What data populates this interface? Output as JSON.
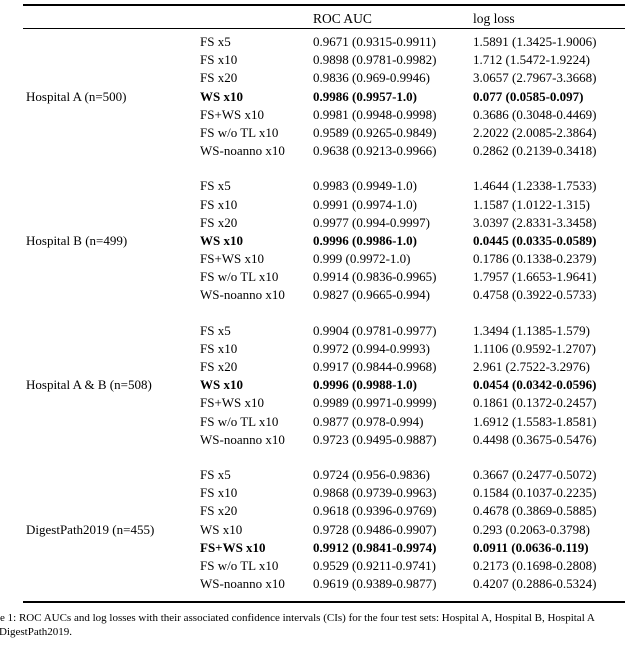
{
  "table": {
    "headers": {
      "roc_auc": "ROC AUC",
      "log_loss": "log loss"
    },
    "groups": [
      {
        "label": "Hospital A (n=500)",
        "rows": [
          {
            "method": "FS x5",
            "roc_auc": "0.9671 (0.9315-0.9911)",
            "log_loss": "1.5891 (1.3425-1.9006)",
            "bold": false
          },
          {
            "method": "FS x10",
            "roc_auc": "0.9898 (0.9781-0.9982)",
            "log_loss": "1.712 (1.5472-1.9224)",
            "bold": false
          },
          {
            "method": "FS x20",
            "roc_auc": "0.9836 (0.969-0.9946)",
            "log_loss": "3.0657 (2.7967-3.3668)",
            "bold": false
          },
          {
            "method": "WS x10",
            "roc_auc": "0.9986 (0.9957-1.0)",
            "log_loss": "0.077 (0.0585-0.097)",
            "bold": true
          },
          {
            "method": "FS+WS x10",
            "roc_auc": "0.9981 (0.9948-0.9998)",
            "log_loss": "0.3686 (0.3048-0.4469)",
            "bold": false
          },
          {
            "method": "FS w/o TL x10",
            "roc_auc": "0.9589 (0.9265-0.9849)",
            "log_loss": "2.2022 (2.0085-2.3864)",
            "bold": false
          },
          {
            "method": "WS-noanno x10",
            "roc_auc": "0.9638 (0.9213-0.9966)",
            "log_loss": "0.2862 (0.2139-0.3418)",
            "bold": false
          }
        ]
      },
      {
        "label": "Hospital B (n=499)",
        "rows": [
          {
            "method": "FS x5",
            "roc_auc": "0.9983 (0.9949-1.0)",
            "log_loss": "1.4644 (1.2338-1.7533)",
            "bold": false
          },
          {
            "method": "FS x10",
            "roc_auc": "0.9991 (0.9974-1.0)",
            "log_loss": "1.1587 (1.0122-1.315)",
            "bold": false
          },
          {
            "method": "FS x20",
            "roc_auc": "0.9977 (0.994-0.9997)",
            "log_loss": "3.0397 (2.8331-3.3458)",
            "bold": false
          },
          {
            "method": "WS x10",
            "roc_auc": "0.9996 (0.9986-1.0)",
            "log_loss": "0.0445 (0.0335-0.0589)",
            "bold": true
          },
          {
            "method": "FS+WS x10",
            "roc_auc": "0.999 (0.9972-1.0)",
            "log_loss": "0.1786 (0.1338-0.2379)",
            "bold": false
          },
          {
            "method": "FS w/o TL x10",
            "roc_auc": "0.9914 (0.9836-0.9965)",
            "log_loss": "1.7957 (1.6653-1.9641)",
            "bold": false
          },
          {
            "method": "WS-noanno x10",
            "roc_auc": "0.9827 (0.9665-0.994)",
            "log_loss": "0.4758 (0.3922-0.5733)",
            "bold": false
          }
        ]
      },
      {
        "label": "Hospital A & B (n=508)",
        "rows": [
          {
            "method": "FS x5",
            "roc_auc": "0.9904 (0.9781-0.9977)",
            "log_loss": "1.3494 (1.1385-1.579)",
            "bold": false
          },
          {
            "method": "FS x10",
            "roc_auc": "0.9972 (0.994-0.9993)",
            "log_loss": "1.1106 (0.9592-1.2707)",
            "bold": false
          },
          {
            "method": "FS x20",
            "roc_auc": "0.9917 (0.9844-0.9968)",
            "log_loss": "2.961 (2.7522-3.2976)",
            "bold": false
          },
          {
            "method": "WS x10",
            "roc_auc": "0.9996 (0.9988-1.0)",
            "log_loss": "0.0454 (0.0342-0.0596)",
            "bold": true
          },
          {
            "method": "FS+WS x10",
            "roc_auc": "0.9989 (0.9971-0.9999)",
            "log_loss": "0.1861 (0.1372-0.2457)",
            "bold": false
          },
          {
            "method": "FS w/o TL x10",
            "roc_auc": "0.9877 (0.978-0.994)",
            "log_loss": "1.6912 (1.5583-1.8581)",
            "bold": false
          },
          {
            "method": "WS-noanno x10",
            "roc_auc": "0.9723 (0.9495-0.9887)",
            "log_loss": "0.4498 (0.3675-0.5476)",
            "bold": false
          }
        ]
      },
      {
        "label": "DigestPath2019 (n=455)",
        "rows": [
          {
            "method": "FS x5",
            "roc_auc": "0.9724 (0.956-0.9836)",
            "log_loss": "0.3667 (0.2477-0.5072)",
            "bold": false
          },
          {
            "method": "FS x10",
            "roc_auc": "0.9868 (0.9739-0.9963)",
            "log_loss": "0.1584 (0.1037-0.2235)",
            "bold": false
          },
          {
            "method": "FS x20",
            "roc_auc": "0.9618 (0.9396-0.9769)",
            "log_loss": "0.4678 (0.3869-0.5885)",
            "bold": false
          },
          {
            "method": "WS x10",
            "roc_auc": "0.9728 (0.9486-0.9907)",
            "log_loss": "0.293 (0.2063-0.3798)",
            "bold": false
          },
          {
            "method": "FS+WS x10",
            "roc_auc": "0.9912 (0.9841-0.9974)",
            "log_loss": "0.0911 (0.0636-0.119)",
            "bold": true
          },
          {
            "method": "FS w/o TL x10",
            "roc_auc": "0.9529 (0.9211-0.9741)",
            "log_loss": "0.2173 (0.1698-0.2808)",
            "bold": false
          },
          {
            "method": "WS-noanno x10",
            "roc_auc": "0.9619 (0.9389-0.9877)",
            "log_loss": "0.4207 (0.2886-0.5324)",
            "bold": false
          }
        ]
      }
    ]
  },
  "caption": {
    "line1": "e 1: ROC AUCs and log losses with their associated confidence intervals (CIs) for the four test sets: Hospital A, Hospital B, Hospital A",
    "line2": "DigestPath2019."
  },
  "colors": {
    "text": "#000000",
    "background": "#ffffff",
    "rule": "#000000"
  }
}
